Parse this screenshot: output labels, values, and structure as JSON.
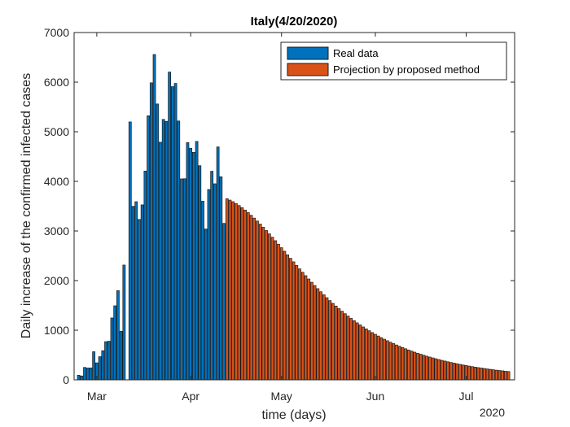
{
  "chart_data": {
    "type": "bar",
    "title": "Italy(4/20/2020)",
    "xlabel": "time (days)",
    "ylabel": "Daily increase of the confirmed infected cases",
    "ylim": [
      0,
      7000
    ],
    "yticks": [
      0,
      1000,
      2000,
      3000,
      4000,
      5000,
      6000,
      7000
    ],
    "x_start_date": "2020-02-24",
    "xlim_days": [
      -1.5,
      144
    ],
    "xticks": [
      {
        "label": "Mar",
        "day": 6
      },
      {
        "label": "Apr",
        "day": 37
      },
      {
        "label": "May",
        "day": 67
      },
      {
        "label": "Jun",
        "day": 98
      },
      {
        "label": "Jul",
        "day": 128
      }
    ],
    "x_secondary_label": "2020",
    "grid": false,
    "legend_position": "top-right",
    "colors": {
      "real": "#0072BD",
      "projection": "#D95319",
      "edge": "#1a1a1a",
      "axis": "#262626"
    },
    "series": [
      {
        "name": "Real data",
        "start_day": 0,
        "values": [
          93,
          78,
          250,
          238,
          240,
          566,
          342,
          466,
          587,
          769,
          778,
          1247,
          1492,
          1797,
          977,
          2313,
          0,
          5198,
          3497,
          3590,
          3233,
          3526,
          4207,
          5322,
          5986,
          6557,
          5560,
          4789,
          5249,
          5210,
          6203,
          5909,
          5974,
          5217,
          4050,
          4053,
          4782,
          4668,
          4585,
          4805,
          4316,
          3599,
          3039,
          3836,
          4204,
          3951,
          4694,
          4092,
          3153,
          2972
        ]
      },
      {
        "name": "Projection by proposed method",
        "start_day": 49,
        "values": [
          3650,
          3622,
          3590,
          3553,
          3513,
          3469,
          3421,
          3370,
          3316,
          3259,
          3200,
          3138,
          3074,
          3009,
          2942,
          2874,
          2804,
          2734,
          2663,
          2592,
          2520,
          2449,
          2378,
          2307,
          2237,
          2168,
          2099,
          2032,
          1966,
          1901,
          1837,
          1775,
          1714,
          1655,
          1597,
          1541,
          1487,
          1434,
          1383,
          1333,
          1285,
          1238,
          1193,
          1149,
          1107,
          1066,
          1027,
          989,
          952,
          917,
          883,
          850,
          818,
          788,
          758,
          730,
          702,
          676,
          650,
          626,
          602,
          579,
          557,
          536,
          516,
          496,
          477,
          459,
          442,
          425,
          409,
          393,
          378,
          364,
          350,
          337,
          324,
          311,
          299,
          288,
          277,
          266,
          256,
          246,
          237,
          228,
          219,
          211,
          203,
          195,
          188,
          181,
          174,
          167
        ]
      }
    ]
  }
}
